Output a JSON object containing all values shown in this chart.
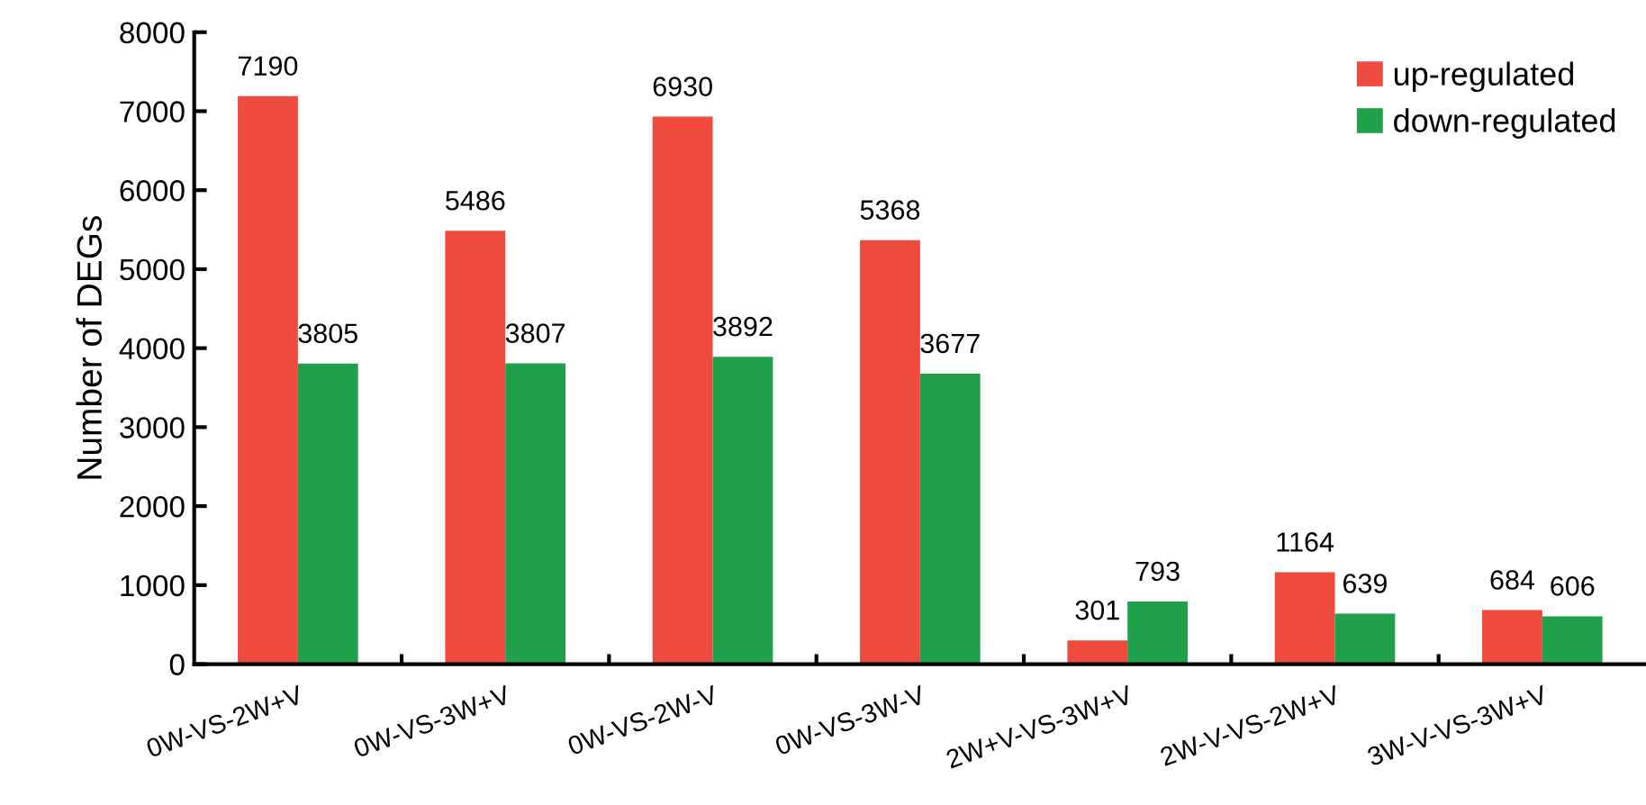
{
  "chart_data": {
    "type": "bar",
    "ylabel": "Number of DEGs",
    "categories": [
      "0W-VS-2W+V",
      "0W-VS-3W+V",
      "0W-VS-2W-V",
      "0W-VS-3W-V",
      "2W+V-VS-3W+V",
      "2W-V-VS-2W+V",
      "3W-V-VS-3W+V"
    ],
    "series": [
      {
        "name": "up-regulated",
        "color": "#ef4a3e",
        "values": [
          7190,
          5486,
          6930,
          5368,
          301,
          1164,
          684
        ]
      },
      {
        "name": "down-regulated",
        "color": "#20a04a",
        "values": [
          3805,
          3807,
          3892,
          3677,
          793,
          639,
          606
        ]
      }
    ],
    "ylim": [
      0,
      8000
    ],
    "yticks": [
      0,
      1000,
      2000,
      3000,
      4000,
      5000,
      6000,
      7000,
      8000
    ],
    "data_labels": true,
    "grid": false,
    "legend": "top right"
  }
}
